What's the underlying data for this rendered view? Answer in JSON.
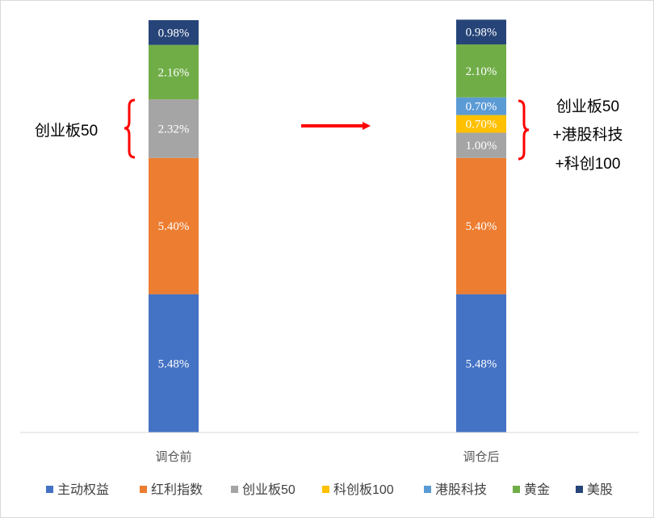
{
  "chart_data": {
    "type": "bar",
    "stacked": true,
    "categories": [
      "调仓前",
      "调仓后"
    ],
    "series": [
      {
        "name": "主动权益",
        "color": "#4472C4",
        "values": [
          5.48,
          5.48
        ],
        "labels": [
          "5.48%",
          "5.48%"
        ]
      },
      {
        "name": "红利指数",
        "color": "#ED7D31",
        "values": [
          5.4,
          5.4
        ],
        "labels": [
          "5.40%",
          "5.40%"
        ]
      },
      {
        "name": "创业板50",
        "color": "#A5A5A5",
        "values": [
          2.32,
          1.0
        ],
        "labels": [
          "2.32%",
          "1.00%"
        ]
      },
      {
        "name": "科创板100",
        "color": "#FFC000",
        "values": [
          0,
          0.7
        ],
        "labels": [
          "",
          "0.70%"
        ]
      },
      {
        "name": "港股科技",
        "color": "#5B9BD5",
        "values": [
          0,
          0.7
        ],
        "labels": [
          "",
          "0.70%"
        ]
      },
      {
        "name": "黄金",
        "color": "#70AD47",
        "values": [
          2.16,
          2.1
        ],
        "labels": [
          "2.16%",
          "2.10%"
        ]
      },
      {
        "name": "美股",
        "color": "#264478",
        "values": [
          0.98,
          0.98
        ],
        "labels": [
          "0.98%",
          "0.98%"
        ]
      }
    ],
    "title": "",
    "xlabel": "",
    "ylabel": "",
    "ylim": [
      0,
      16.34
    ],
    "grid": false,
    "legend": "bottom",
    "annotations": {
      "left": "创业板50",
      "right": [
        "创业板50",
        "+港股科技",
        "+科创100"
      ]
    },
    "accent_color": "#FF0000"
  }
}
